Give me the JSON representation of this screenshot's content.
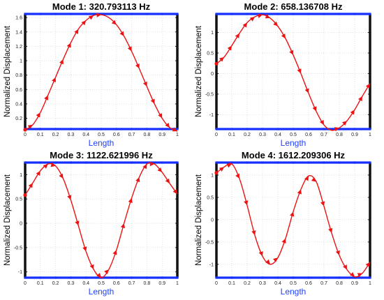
{
  "chart_data": [
    {
      "type": "line",
      "title": "Mode 1: 320.793113 Hz",
      "xlabel": "Length",
      "ylabel": "Normalized Displacement",
      "xlim": [
        0,
        1
      ],
      "ylim": [
        0.05,
        1.65
      ],
      "xticks": [
        "0",
        "0.1",
        "0.2",
        "0.3",
        "0.4",
        "0.5",
        "0.6",
        "0.7",
        "0.8",
        "0.9",
        "1"
      ],
      "yticks": [
        0.2,
        0.4,
        0.6,
        0.8,
        1,
        1.2,
        1.4,
        1.6
      ],
      "ytick_labels": [
        "0.2",
        "0.4",
        "0.6",
        "0.8",
        "1",
        "1.2",
        "1.4",
        "1.6"
      ],
      "grid": true,
      "x": [
        0,
        0.05,
        0.1,
        0.15,
        0.2,
        0.25,
        0.3,
        0.35,
        0.4,
        0.45,
        0.5,
        0.55,
        0.6,
        0.65,
        0.7,
        0.75,
        0.8,
        0.85,
        0.9,
        0.95,
        1
      ],
      "y": [
        0.04,
        0.11,
        0.28,
        0.52,
        0.77,
        1.02,
        1.25,
        1.44,
        1.56,
        1.63,
        1.64,
        1.6,
        1.5,
        1.34,
        1.13,
        0.89,
        0.64,
        0.4,
        0.2,
        0.07,
        0.02
      ],
      "arrows_at": [
        0.05,
        0.1,
        0.15,
        0.2,
        0.25,
        0.3,
        0.35,
        0.4,
        0.45,
        0.5,
        0.6,
        0.65,
        0.7,
        0.75,
        0.8,
        0.85,
        0.9,
        0.95,
        1
      ]
    },
    {
      "type": "line",
      "title": "Mode 2: 658.136708 Hz",
      "xlabel": "Length",
      "ylabel": "Normalized Displacement",
      "xlim": [
        0,
        1
      ],
      "ylim": [
        -1.35,
        1.45
      ],
      "xticks": [
        "0",
        "0.1",
        "0.2",
        "0.3",
        "0.4",
        "0.5",
        "0.6",
        "0.7",
        "0.8",
        "0.9",
        "1"
      ],
      "yticks": [
        -1,
        -0.5,
        0,
        0.5,
        1
      ],
      "ytick_labels": [
        "-1",
        "-0.5",
        "0",
        "0.5",
        "1"
      ],
      "grid": true,
      "x": [
        0,
        0.05,
        0.1,
        0.15,
        0.2,
        0.25,
        0.3,
        0.35,
        0.4,
        0.45,
        0.5,
        0.55,
        0.6,
        0.65,
        0.7,
        0.75,
        0.8,
        0.85,
        0.9,
        0.95,
        1
      ],
      "y": [
        0.24,
        0.4,
        0.68,
        0.98,
        1.24,
        1.38,
        1.43,
        1.35,
        1.15,
        0.85,
        0.45,
        0.0,
        -0.48,
        -0.92,
        -1.25,
        -1.38,
        -1.32,
        -1.15,
        -0.88,
        -0.55,
        -0.24
      ],
      "arrows_at": [
        0.05,
        0.1,
        0.15,
        0.2,
        0.25,
        0.3,
        0.35,
        0.4,
        0.45,
        0.5,
        0.55,
        0.6,
        0.65,
        0.7,
        0.8,
        0.85,
        0.9,
        0.95,
        1
      ]
    },
    {
      "type": "line",
      "title": "Mode 3: 1122.621996 Hz",
      "xlabel": "Length",
      "ylabel": "Normalized Displacement",
      "xlim": [
        0,
        1
      ],
      "ylim": [
        -1.12,
        1.25
      ],
      "xticks": [
        "0",
        "0.1",
        "0.2",
        "0.3",
        "0.4",
        "0.5",
        "0.6",
        "0.7",
        "0.8",
        "0.9",
        "1"
      ],
      "yticks": [
        -1,
        -0.5,
        0,
        0.5,
        1
      ],
      "ytick_labels": [
        "-1",
        "-0.5",
        "0",
        "0.5",
        "1"
      ],
      "grid": true,
      "x": [
        0,
        0.05,
        0.1,
        0.15,
        0.2,
        0.25,
        0.3,
        0.35,
        0.4,
        0.45,
        0.5,
        0.55,
        0.6,
        0.65,
        0.7,
        0.75,
        0.8,
        0.85,
        0.9,
        0.95,
        1
      ],
      "y": [
        0.58,
        0.83,
        1.08,
        1.22,
        1.18,
        0.92,
        0.48,
        -0.05,
        -0.58,
        -0.95,
        -1.12,
        -0.95,
        -0.55,
        0.0,
        0.52,
        0.95,
        1.22,
        1.22,
        1.05,
        0.82,
        0.6
      ],
      "arrows_at": [
        0.05,
        0.1,
        0.15,
        0.2,
        0.25,
        0.3,
        0.35,
        0.4,
        0.45,
        0.5,
        0.55,
        0.6,
        0.65,
        0.7,
        0.75,
        0.8,
        0.85,
        0.9,
        0.95,
        1
      ]
    },
    {
      "type": "line",
      "title": "Mode 4: 1612.209306 Hz",
      "xlabel": "Length",
      "ylabel": "Normalized Displacement",
      "xlim": [
        0,
        1
      ],
      "ylim": [
        -1.3,
        1.28
      ],
      "xticks": [
        "0",
        "0.1",
        "0.2",
        "0.3",
        "0.4",
        "0.5",
        "0.6",
        "0.7",
        "0.8",
        "0.9",
        "1"
      ],
      "yticks": [
        -1,
        -0.5,
        0,
        0.5,
        1
      ],
      "ytick_labels": [
        "-1",
        "-0.5",
        "0",
        "0.5",
        "1"
      ],
      "grid": true,
      "x": [
        0,
        0.05,
        0.1,
        0.15,
        0.2,
        0.25,
        0.3,
        0.35,
        0.4,
        0.45,
        0.5,
        0.55,
        0.6,
        0.65,
        0.7,
        0.75,
        0.8,
        0.85,
        0.9,
        0.95,
        1
      ],
      "y": [
        1.05,
        1.18,
        1.25,
        0.92,
        0.32,
        -0.35,
        -0.82,
        -1.0,
        -0.85,
        -0.42,
        0.18,
        0.68,
        0.98,
        0.85,
        0.3,
        -0.3,
        -0.8,
        -1.12,
        -1.28,
        -1.2,
        -0.95
      ],
      "arrows_at": [
        0.05,
        0.1,
        0.15,
        0.2,
        0.25,
        0.3,
        0.35,
        0.4,
        0.45,
        0.5,
        0.55,
        0.6,
        0.65,
        0.7,
        0.75,
        0.8,
        0.85,
        0.9,
        0.95,
        1
      ]
    }
  ],
  "colors": {
    "line": "#ee1111",
    "frame_top_bottom": "#1430ff",
    "frame_sides": "#111111",
    "xlabel": "#1f3fff",
    "grid": "#cfcfcf"
  }
}
